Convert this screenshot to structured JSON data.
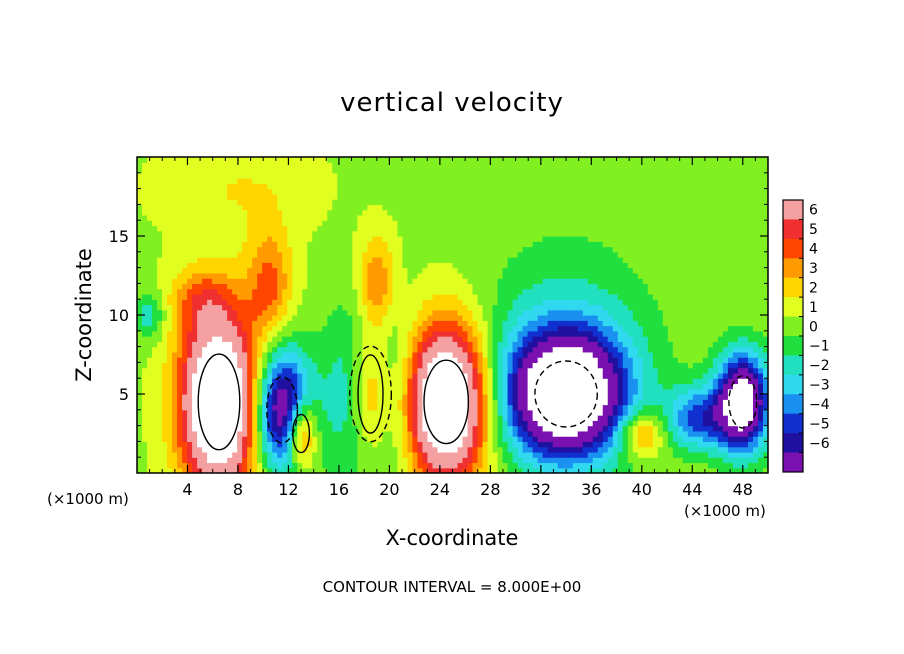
{
  "chart_data": {
    "type": "heatmap",
    "title": "vertical velocity",
    "xlabel": "X-coordinate",
    "ylabel": "Z-coordinate",
    "x_unit_left": "(×1000 m)",
    "x_unit_right": "(×1000 m)",
    "footer": "CONTOUR INTERVAL = 8.000E+00",
    "xlim": [
      0,
      50
    ],
    "ylim": [
      0,
      20
    ],
    "x_ticks": [
      4,
      8,
      12,
      16,
      20,
      24,
      28,
      32,
      36,
      40,
      44,
      48
    ],
    "x_tick_labels": [
      "4",
      "8",
      "12",
      "16",
      "20",
      "24",
      "28",
      "32",
      "36",
      "40",
      "44",
      "48"
    ],
    "y_ticks": [
      5,
      10,
      15
    ],
    "y_tick_labels": [
      "5",
      "10",
      "15"
    ],
    "colorbar": {
      "levels": [
        6,
        5,
        4,
        3,
        2,
        1,
        0,
        -1,
        -2,
        -3,
        -4,
        -5,
        -6
      ],
      "labels": [
        "6",
        "5",
        "4",
        "3",
        "2",
        "1",
        "0",
        "−1",
        "−2",
        "−3",
        "−4",
        "−5",
        "−6"
      ],
      "colors": [
        "#f5a0a0",
        "#f03030",
        "#ff4500",
        "#ff9a00",
        "#ffd500",
        "#e0ff20",
        "#80f020",
        "#20e040",
        "#20e0c0",
        "#30d8f0",
        "#1a90f0",
        "#1030d0",
        "#2010a0",
        "#7a10b0"
      ]
    },
    "background_value": 0.8,
    "cells": [
      {
        "x": 6.5,
        "z": 4.5,
        "rx": 3.0,
        "rz": 5.5,
        "w": 12
      },
      {
        "x": 10.5,
        "z": 12.0,
        "rx": 1.8,
        "rz": 3.5,
        "w": 3.5
      },
      {
        "x": 5.0,
        "z": 11.0,
        "rx": 2.5,
        "rz": 2.0,
        "w": 2.5
      },
      {
        "x": 11.5,
        "z": 4.0,
        "rx": 2.2,
        "rz": 3.8,
        "w": -9
      },
      {
        "x": 13.0,
        "z": 2.5,
        "rx": 1.2,
        "rz": 2.2,
        "w": 6
      },
      {
        "x": 18.5,
        "z": 5.0,
        "rx": 1.8,
        "rz": 4.5,
        "w": 7
      },
      {
        "x": 18.5,
        "z": 5.0,
        "rx": 3.0,
        "rz": 5.5,
        "w": -6
      },
      {
        "x": 19.0,
        "z": 12.0,
        "rx": 1.5,
        "rz": 3.0,
        "w": 3.5
      },
      {
        "x": 24.5,
        "z": 4.5,
        "rx": 3.2,
        "rz": 4.8,
        "w": 12
      },
      {
        "x": 34.0,
        "z": 5.0,
        "rx": 4.5,
        "rz": 3.8,
        "w": -12
      },
      {
        "x": 34.0,
        "z": 7.5,
        "rx": 7.0,
        "rz": 7.0,
        "w": -2.5
      },
      {
        "x": 40.0,
        "z": 2.5,
        "rx": 1.8,
        "rz": 1.5,
        "w": 4
      },
      {
        "x": 44.5,
        "z": 3.5,
        "rx": 2.5,
        "rz": 2.0,
        "w": -5
      },
      {
        "x": 48.0,
        "z": 4.5,
        "rx": 2.0,
        "rz": 3.0,
        "w": -11
      },
      {
        "x": 8.0,
        "z": 18.0,
        "rx": 6.0,
        "rz": 3.0,
        "w": 1.2
      },
      {
        "x": 1.0,
        "z": 10.0,
        "rx": 1.2,
        "rz": 1.5,
        "w": -2.5
      }
    ]
  }
}
